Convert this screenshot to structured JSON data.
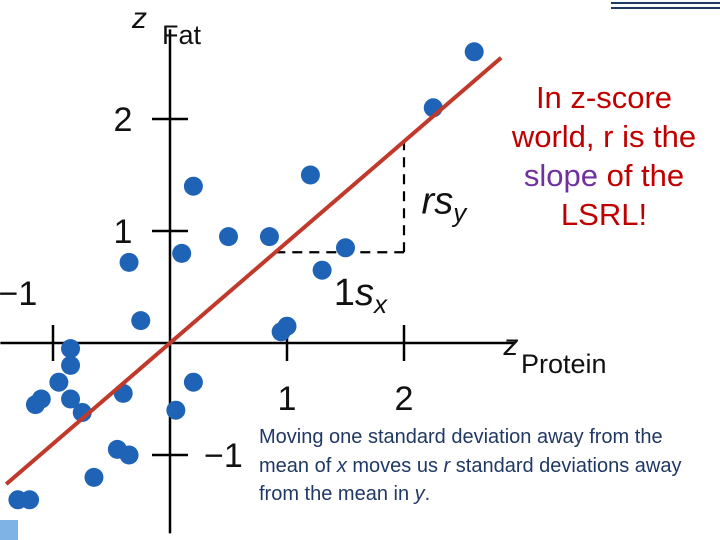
{
  "chart_data": {
    "type": "scatter",
    "xlabel_z": "z",
    "xlabel": "Protein",
    "ylabel_z": "z",
    "ylabel": "Fat",
    "x_ticks": [
      {
        "value": 1,
        "label": "1"
      },
      {
        "value": 2,
        "label": "2"
      }
    ],
    "y_ticks": [
      {
        "value": 2,
        "label": "2"
      },
      {
        "value": 1,
        "label": "1"
      },
      {
        "value": -1,
        "label": "−1"
      }
    ],
    "x_neg_tick_label": "−1",
    "xlim": [
      -1.45,
      2.95
    ],
    "ylim": [
      -1.7,
      2.8
    ],
    "points": [
      {
        "x": 2.6,
        "y": 2.6
      },
      {
        "x": 2.25,
        "y": 2.1
      },
      {
        "x": 1.2,
        "y": 1.5
      },
      {
        "x": 0.2,
        "y": 1.4
      },
      {
        "x": 0.5,
        "y": 0.95
      },
      {
        "x": 0.85,
        "y": 0.95
      },
      {
        "x": 1.5,
        "y": 0.85
      },
      {
        "x": 0.1,
        "y": 0.8
      },
      {
        "x": -0.35,
        "y": 0.72
      },
      {
        "x": 1.3,
        "y": 0.65
      },
      {
        "x": -0.25,
        "y": 0.2
      },
      {
        "x": 1.0,
        "y": 0.15
      },
      {
        "x": 0.95,
        "y": 0.1
      },
      {
        "x": -0.85,
        "y": -0.05
      },
      {
        "x": -0.85,
        "y": -0.2
      },
      {
        "x": -0.95,
        "y": -0.35
      },
      {
        "x": -0.85,
        "y": -0.5
      },
      {
        "x": -1.1,
        "y": -0.5
      },
      {
        "x": -1.15,
        "y": -0.55
      },
      {
        "x": 0.2,
        "y": -0.35
      },
      {
        "x": -0.4,
        "y": -0.45
      },
      {
        "x": -0.75,
        "y": -0.62
      },
      {
        "x": 0.05,
        "y": -0.6
      },
      {
        "x": -0.45,
        "y": -0.95
      },
      {
        "x": -0.35,
        "y": -1.0
      },
      {
        "x": -0.65,
        "y": -1.2
      },
      {
        "x": -1.3,
        "y": -1.4
      },
      {
        "x": -1.2,
        "y": -1.4
      }
    ],
    "regression_line": {
      "slope": 0.9,
      "intercept": 0,
      "x_range": [
        -1.4,
        2.83
      ]
    },
    "run_segment": {
      "x_from": 0.9,
      "x_to": 2.0
    },
    "run_label_prefix": "1",
    "run_label_main": "s",
    "run_label_sub": "x",
    "rise_label_main": "rs",
    "rise_label_sub": "y",
    "colors": {
      "points": "#1f63b6",
      "line": "#c0392b",
      "axes": "#000000"
    }
  },
  "callout": {
    "part1": "In z-score world, r is the",
    "highlight": "slope",
    "part2": "of the LSRL!"
  },
  "note": {
    "t1": "Moving one standard deviation away from the mean of",
    "x": "x",
    "t2": "moves us",
    "r": "r",
    "t3": "standard deviations away from the mean in",
    "y": "y",
    "t4": "."
  }
}
